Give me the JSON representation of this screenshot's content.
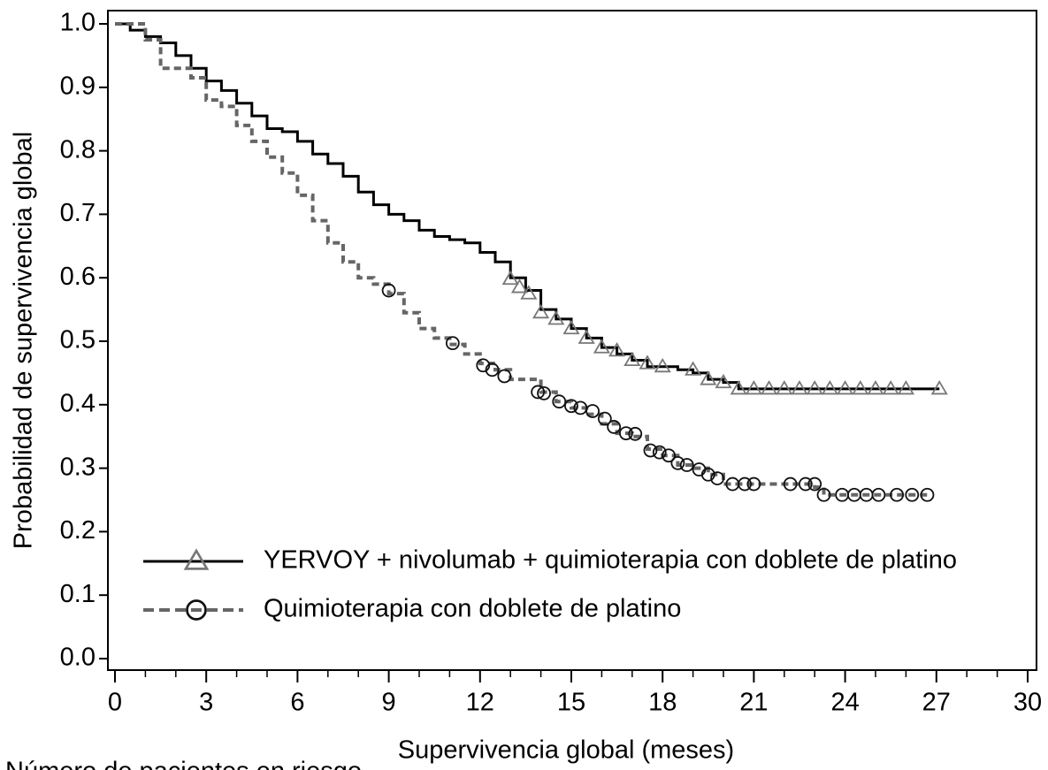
{
  "chart_data": {
    "type": "step",
    "xlabel": "Supervivencia global (meses)",
    "ylabel": "Probabilidad de supervivencia global",
    "footer_text": "Número de pacientes en riesgo",
    "xlim": [
      0,
      30
    ],
    "ylim": [
      0,
      1
    ],
    "xticks": [
      0,
      3,
      6,
      9,
      12,
      15,
      18,
      21,
      24,
      27,
      30
    ],
    "yticks": [
      {
        "value": 0,
        "label": "0.0"
      },
      0.1,
      0.2,
      0.3,
      0.4,
      0.5,
      0.6,
      0.7,
      0.8,
      0.9,
      {
        "value": 1,
        "label": "1.0"
      }
    ],
    "legend": "lower left",
    "series": [
      {
        "name": "YERVOY + nivolumab + quimioterapia con doblete de platino",
        "color": "#000000",
        "marker": "triangle",
        "marker_color": "#777777",
        "dashed": false,
        "x": [
          0,
          0.5,
          1,
          1.5,
          2,
          2.5,
          3,
          3.5,
          4,
          4.5,
          5,
          5.5,
          6,
          6.5,
          7,
          7.5,
          8,
          8.5,
          9,
          9.5,
          10,
          10.5,
          11,
          11.5,
          12,
          12.5,
          13,
          13.5,
          14,
          14.5,
          15,
          15.5,
          16,
          16.5,
          17,
          17.5,
          18,
          18.5,
          19,
          19.5,
          20,
          20.5,
          27.1
        ],
        "values": [
          1.0,
          0.99,
          0.98,
          0.97,
          0.95,
          0.93,
          0.91,
          0.895,
          0.875,
          0.855,
          0.835,
          0.83,
          0.815,
          0.795,
          0.78,
          0.76,
          0.735,
          0.715,
          0.7,
          0.69,
          0.675,
          0.665,
          0.66,
          0.655,
          0.64,
          0.625,
          0.6,
          0.58,
          0.55,
          0.535,
          0.52,
          0.505,
          0.49,
          0.48,
          0.47,
          0.46,
          0.46,
          0.455,
          0.45,
          0.44,
          0.435,
          0.425,
          0.425
        ],
        "censored_x": [
          13,
          13.3,
          13.6,
          14,
          14.5,
          15,
          15.5,
          16,
          16.5,
          17,
          17.5,
          18,
          19,
          19.5,
          20,
          20.5,
          21,
          21.5,
          22,
          22.5,
          23,
          23.5,
          24,
          24.5,
          25,
          25.5,
          26,
          27.1
        ],
        "censored_values": [
          0.598,
          0.585,
          0.575,
          0.545,
          0.535,
          0.52,
          0.505,
          0.49,
          0.485,
          0.47,
          0.465,
          0.46,
          0.455,
          0.44,
          0.435,
          0.425,
          0.425,
          0.425,
          0.425,
          0.425,
          0.425,
          0.425,
          0.425,
          0.425,
          0.425,
          0.425,
          0.425,
          0.425
        ]
      },
      {
        "name": "Quimioterapia con doblete de platino",
        "color": "#666666",
        "marker": "circle",
        "marker_color": "#111111",
        "dashed": true,
        "x": [
          0,
          1,
          1.5,
          2.5,
          3,
          3.5,
          4,
          4.5,
          5,
          5.5,
          6,
          6.5,
          7,
          7.5,
          8,
          8.5,
          9,
          9.5,
          10,
          10.5,
          11,
          11.5,
          12,
          12.5,
          13,
          14,
          14.5,
          15,
          15.5,
          16,
          16.5,
          17,
          17.5,
          18,
          18.5,
          19,
          19.5,
          20,
          22,
          23,
          23.3,
          26.7
        ],
        "values": [
          1.0,
          0.975,
          0.93,
          0.915,
          0.88,
          0.87,
          0.84,
          0.815,
          0.79,
          0.765,
          0.73,
          0.69,
          0.655,
          0.625,
          0.6,
          0.59,
          0.575,
          0.545,
          0.52,
          0.505,
          0.495,
          0.48,
          0.465,
          0.455,
          0.44,
          0.42,
          0.405,
          0.395,
          0.385,
          0.37,
          0.355,
          0.35,
          0.33,
          0.32,
          0.305,
          0.3,
          0.29,
          0.275,
          0.275,
          0.27,
          0.258,
          0.258
        ],
        "censored_x": [
          9,
          11.1,
          12.1,
          12.4,
          12.8,
          13.9,
          14.1,
          14.6,
          15,
          15.3,
          15.7,
          16.1,
          16.4,
          16.8,
          17.1,
          17.6,
          17.9,
          18.2,
          18.5,
          18.8,
          19.2,
          19.5,
          19.8,
          20.3,
          20.7,
          21,
          22.2,
          22.7,
          23,
          23.3,
          23.9,
          24.3,
          24.7,
          25.1,
          25.7,
          26.2,
          26.7
        ],
        "censored_values": [
          0.58,
          0.497,
          0.462,
          0.455,
          0.445,
          0.42,
          0.418,
          0.405,
          0.398,
          0.395,
          0.39,
          0.378,
          0.365,
          0.355,
          0.354,
          0.328,
          0.325,
          0.32,
          0.308,
          0.305,
          0.298,
          0.29,
          0.284,
          0.275,
          0.275,
          0.275,
          0.275,
          0.275,
          0.275,
          0.258,
          0.258,
          0.258,
          0.258,
          0.258,
          0.258,
          0.258,
          0.258
        ]
      }
    ]
  }
}
